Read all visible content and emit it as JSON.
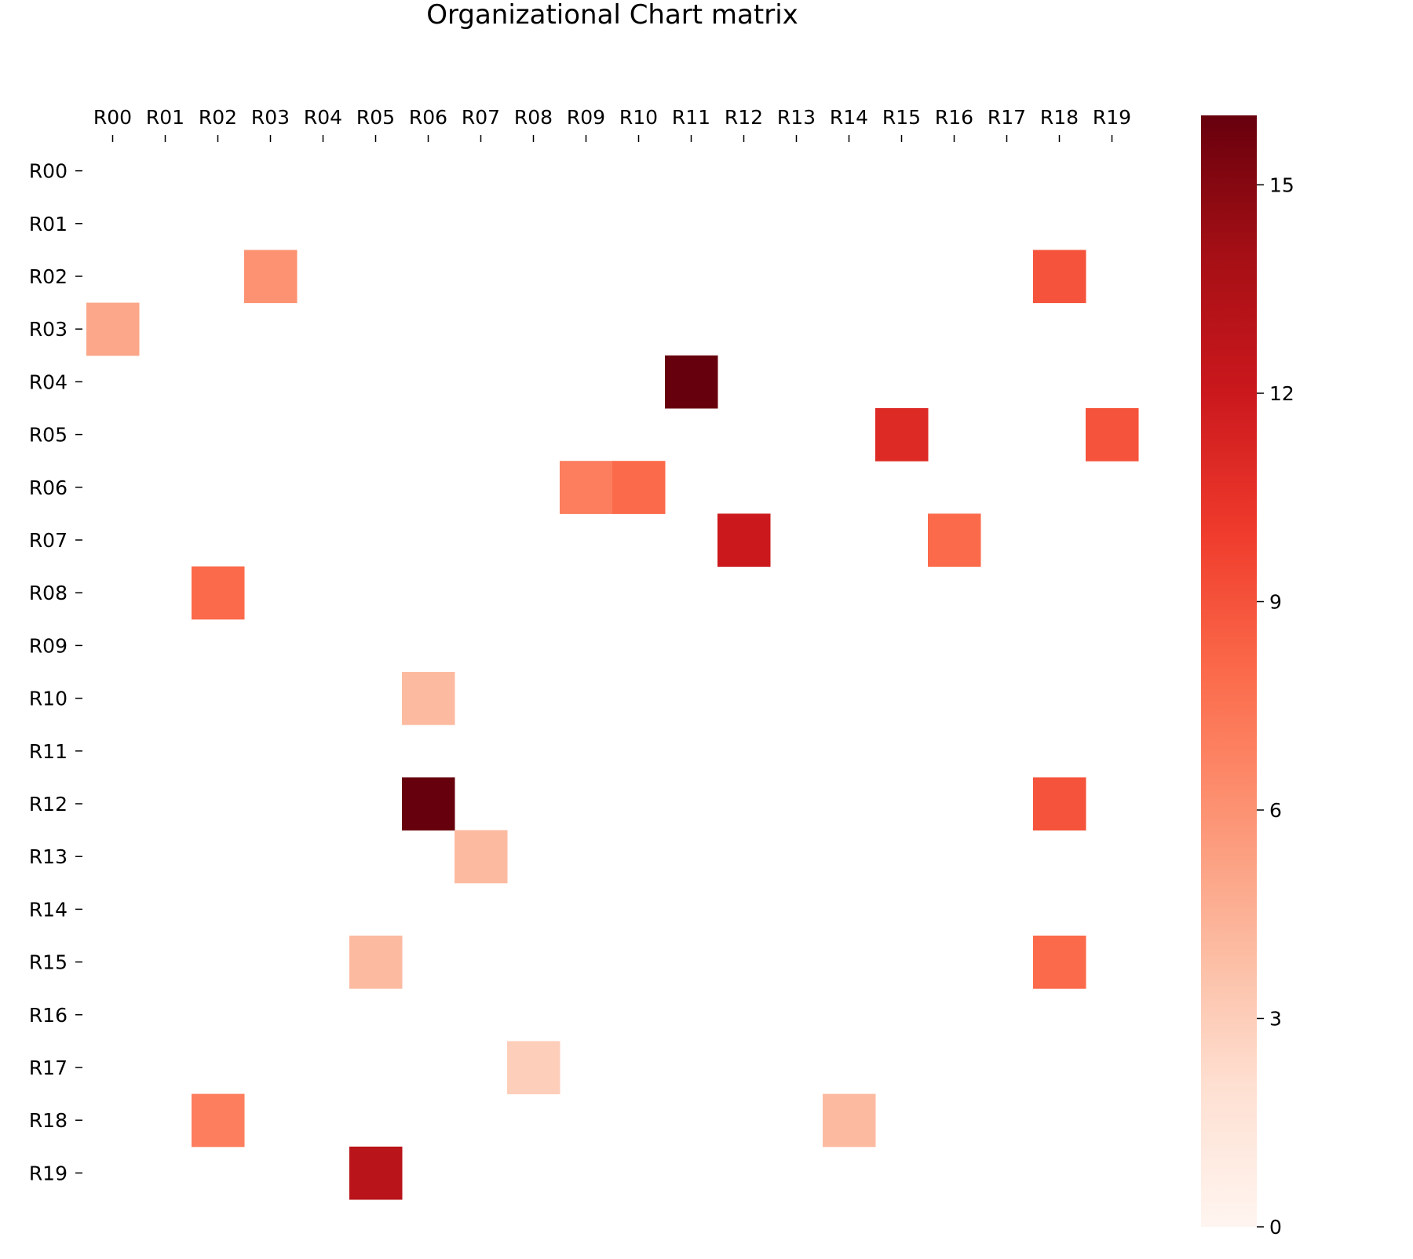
{
  "chart_data": {
    "type": "heatmap",
    "title": "Organizational Chart matrix",
    "xlabel": "",
    "ylabel": "",
    "x_categories": [
      "R00",
      "R01",
      "R02",
      "R03",
      "R04",
      "R05",
      "R06",
      "R07",
      "R08",
      "R09",
      "R10",
      "R11",
      "R12",
      "R13",
      "R14",
      "R15",
      "R16",
      "R17",
      "R18",
      "R19"
    ],
    "y_categories": [
      "R00",
      "R01",
      "R02",
      "R03",
      "R04",
      "R05",
      "R06",
      "R07",
      "R08",
      "R09",
      "R10",
      "R11",
      "R12",
      "R13",
      "R14",
      "R15",
      "R16",
      "R17",
      "R18",
      "R19"
    ],
    "x_axis_position": "top",
    "grid": false,
    "colormap": "Reds",
    "colorbar": {
      "min": 0,
      "max": 16,
      "ticks": [
        0,
        3,
        6,
        9,
        12,
        15
      ],
      "position": "right"
    },
    "cells": [
      {
        "row": "R02",
        "col": "R03",
        "value": 6
      },
      {
        "row": "R02",
        "col": "R18",
        "value": 9
      },
      {
        "row": "R03",
        "col": "R00",
        "value": 5
      },
      {
        "row": "R04",
        "col": "R11",
        "value": 16
      },
      {
        "row": "R05",
        "col": "R15",
        "value": 11
      },
      {
        "row": "R05",
        "col": "R19",
        "value": 9
      },
      {
        "row": "R06",
        "col": "R09",
        "value": 7
      },
      {
        "row": "R06",
        "col": "R10",
        "value": 8
      },
      {
        "row": "R07",
        "col": "R12",
        "value": 12
      },
      {
        "row": "R07",
        "col": "R16",
        "value": 8
      },
      {
        "row": "R08",
        "col": "R02",
        "value": 8
      },
      {
        "row": "R10",
        "col": "R06",
        "value": 4
      },
      {
        "row": "R12",
        "col": "R06",
        "value": 16
      },
      {
        "row": "R12",
        "col": "R18",
        "value": 9
      },
      {
        "row": "R13",
        "col": "R07",
        "value": 4
      },
      {
        "row": "R15",
        "col": "R05",
        "value": 4
      },
      {
        "row": "R15",
        "col": "R18",
        "value": 8
      },
      {
        "row": "R17",
        "col": "R08",
        "value": 3
      },
      {
        "row": "R18",
        "col": "R02",
        "value": 7
      },
      {
        "row": "R18",
        "col": "R14",
        "value": 4
      },
      {
        "row": "R19",
        "col": "R05",
        "value": 13
      }
    ]
  }
}
